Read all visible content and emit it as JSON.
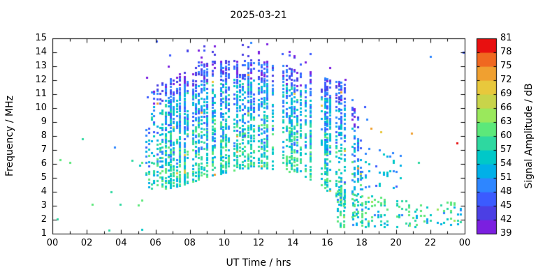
{
  "title": "2025-03-21",
  "chart_data": {
    "type": "scatter",
    "title": "2025-03-21",
    "xlabel": "UT Time / hrs",
    "ylabel": "Frequency / MHz",
    "colorbar_label": "Signal Amplitude / dB",
    "xlim": [
      0,
      24
    ],
    "ylim": [
      1,
      15
    ],
    "grid": false,
    "x_ticks": {
      "values": [
        0,
        2,
        4,
        6,
        8,
        10,
        12,
        14,
        16,
        18,
        20,
        22,
        24
      ],
      "labels": [
        "00",
        "02",
        "04",
        "06",
        "08",
        "10",
        "12",
        "14",
        "16",
        "18",
        "20",
        "22",
        "00"
      ],
      "minor": [
        1,
        3,
        5,
        7,
        9,
        11,
        13,
        15,
        17,
        19,
        21,
        23
      ]
    },
    "y_ticks": {
      "values": [
        1,
        2,
        3,
        4,
        5,
        6,
        7,
        8,
        9,
        10,
        11,
        12,
        13,
        14,
        15
      ],
      "labels": [
        "1",
        "2",
        "3",
        "4",
        "5",
        "6",
        "7",
        "8",
        "9",
        "10",
        "11",
        "12",
        "13",
        "14",
        "15"
      ]
    },
    "colorbar": {
      "min": 39,
      "max": 81,
      "step": 3,
      "tick_values": [
        39,
        42,
        45,
        48,
        51,
        54,
        57,
        60,
        63,
        66,
        69,
        72,
        75,
        78,
        81
      ],
      "band_colors": [
        "#7b1fe0",
        "#4b3fe4",
        "#3b5bff",
        "#2e86ff",
        "#00b0e8",
        "#00c8c8",
        "#2ed8a0",
        "#5ce87a",
        "#9ae85c",
        "#c8d44a",
        "#e8c83c",
        "#f0a030",
        "#f06820",
        "#e81010"
      ]
    },
    "marker": {
      "w": 3,
      "h": 3
    },
    "seed": 20250321,
    "bands": [
      {
        "name": "F-region-daytime-arc",
        "t_start": 5.45,
        "t_end": 18.0,
        "interval": 0.16,
        "skip": 0.18,
        "fill": 0.62,
        "freq_step": 0.14,
        "amp_mode": "arc",
        "outliers": true,
        "top_env": [
          [
            5.45,
            9.5
          ],
          [
            5.7,
            11.5
          ],
          [
            6.2,
            11.8
          ],
          [
            7.0,
            12.2
          ],
          [
            8.0,
            12.9
          ],
          [
            9.0,
            13.3
          ],
          [
            10.0,
            13.5
          ],
          [
            11.5,
            13.5
          ],
          [
            12.5,
            13.3
          ],
          [
            14.0,
            13.0
          ],
          [
            15.0,
            12.7
          ],
          [
            16.0,
            12.2
          ],
          [
            17.0,
            11.9
          ],
          [
            17.5,
            10.5
          ],
          [
            18.0,
            8.5
          ]
        ],
        "bot_env": [
          [
            5.45,
            4.4
          ],
          [
            6.0,
            4.2
          ],
          [
            7.0,
            4.3
          ],
          [
            8.0,
            4.7
          ],
          [
            9.0,
            5.1
          ],
          [
            10.0,
            5.4
          ],
          [
            11.0,
            5.7
          ],
          [
            12.5,
            5.7
          ],
          [
            13.5,
            5.5
          ],
          [
            14.5,
            5.2
          ],
          [
            15.5,
            4.7
          ],
          [
            16.2,
            3.9
          ],
          [
            16.8,
            2.8
          ],
          [
            17.4,
            2.1
          ],
          [
            18.0,
            1.8
          ]
        ],
        "fill_env": [
          [
            5.45,
            0.3
          ],
          [
            6.0,
            0.55
          ],
          [
            6.6,
            1.0
          ],
          [
            16.3,
            1.0
          ],
          [
            17.2,
            0.85
          ],
          [
            18.0,
            0.5
          ]
        ]
      },
      {
        "name": "evening-low-band",
        "t_start": 16.6,
        "t_end": 21.6,
        "interval": 0.18,
        "skip": 0.3,
        "fill": 0.4,
        "freq_step": 0.14,
        "amp_mode": "low",
        "outliers": false,
        "top_env": [
          [
            16.6,
            4.2
          ],
          [
            18.0,
            3.9
          ],
          [
            19.5,
            3.6
          ],
          [
            21.6,
            3.1
          ]
        ],
        "bot_env": [
          [
            16.6,
            1.5
          ],
          [
            21.6,
            1.5
          ]
        ],
        "fill_env": [
          [
            16.6,
            1
          ],
          [
            18.0,
            1
          ],
          [
            19.0,
            0.7
          ],
          [
            20.2,
            0.5
          ],
          [
            21.6,
            0.6
          ]
        ]
      },
      {
        "name": "night-low-band",
        "t_start": 20.8,
        "t_end": 23.9,
        "interval": 0.2,
        "skip": 0.35,
        "fill": 0.3,
        "freq_step": 0.14,
        "amp_mode": "low",
        "outliers": false,
        "top_env": [
          [
            20.8,
            2.6
          ],
          [
            22.3,
            3.2
          ],
          [
            23.3,
            3.3
          ],
          [
            23.9,
            2.9
          ]
        ],
        "bot_env": [
          [
            20.8,
            1.6
          ],
          [
            23.9,
            1.7
          ]
        ],
        "fill_env": [
          [
            20.8,
            0.6
          ],
          [
            22.2,
            1
          ],
          [
            23.4,
            1
          ],
          [
            23.9,
            0.7
          ]
        ]
      },
      {
        "name": "dusk-mid-scatter",
        "t_start": 18.05,
        "t_end": 20.4,
        "interval": 0.2,
        "skip": 0.3,
        "fill": 0.14,
        "freq_step": 0.16,
        "amp_mode": "mid",
        "outliers": false,
        "top_env": [
          [
            18.05,
            7.6
          ],
          [
            20.4,
            6.6
          ]
        ],
        "bot_env": [
          [
            18.05,
            4.2
          ],
          [
            20.4,
            4.4
          ]
        ],
        "fill_env": [
          [
            18.05,
            1
          ],
          [
            20.4,
            1
          ]
        ]
      },
      {
        "name": "pre-dawn-sparse",
        "t_start": 0.1,
        "t_end": 5.2,
        "interval": 0.3,
        "skip": 0.55,
        "fill": 0.035,
        "freq_step": 0.3,
        "amp_mode": "low",
        "outliers": false,
        "top_env": [
          [
            0.1,
            7.5
          ],
          [
            5.2,
            7.5
          ]
        ],
        "bot_env": [
          [
            0.1,
            1.3
          ],
          [
            5.2,
            1.3
          ]
        ],
        "fill_env": [
          [
            0.1,
            1
          ],
          [
            5.2,
            1
          ]
        ]
      }
    ],
    "extra_points": [
      [
        0.3,
        2.05,
        57
      ],
      [
        0.45,
        6.3,
        60
      ],
      [
        1.75,
        7.8,
        58
      ],
      [
        2.3,
        3.1,
        60
      ],
      [
        3.3,
        1.25,
        57
      ],
      [
        3.6,
        7.2,
        49
      ],
      [
        3.95,
        3.1,
        58
      ],
      [
        4.65,
        6.25,
        57
      ],
      [
        5.0,
        3.05,
        60
      ],
      [
        5.1,
        5.9,
        54
      ],
      [
        5.5,
        12.2,
        40
      ],
      [
        5.52,
        10.8,
        46
      ],
      [
        6.05,
        14.8,
        47
      ],
      [
        6.85,
        13.8,
        46
      ],
      [
        9.3,
        14.05,
        44
      ],
      [
        11.55,
        14.7,
        49
      ],
      [
        12.0,
        13.95,
        41
      ],
      [
        13.4,
        13.9,
        46
      ],
      [
        15.0,
        13.9,
        46
      ],
      [
        17.05,
        12.05,
        40
      ],
      [
        18.2,
        10.1,
        46
      ],
      [
        18.3,
        9.2,
        50
      ],
      [
        18.55,
        8.55,
        73
      ],
      [
        19.1,
        8.3,
        70
      ],
      [
        19.8,
        6.8,
        48
      ],
      [
        20.25,
        5.9,
        52
      ],
      [
        20.9,
        8.2,
        73
      ],
      [
        21.3,
        6.1,
        57
      ],
      [
        22.0,
        13.7,
        48
      ],
      [
        23.55,
        7.5,
        79
      ],
      [
        23.9,
        14.0,
        46
      ]
    ]
  }
}
